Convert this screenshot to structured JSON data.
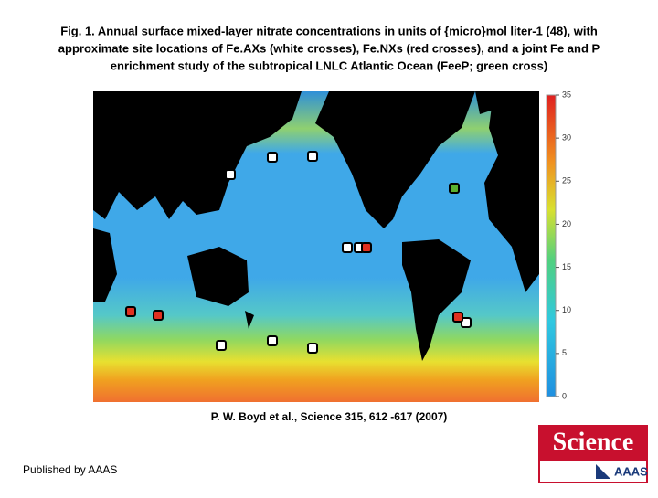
{
  "title": [
    "Fig. 1. Annual surface mixed-layer nitrate concentrations in units of {micro}mol liter-1 (48), with",
    "approximate site locations of Fe.AXs (white crosses), Fe.NXs (red crosses), and a joint Fe and P",
    "enrichment study of the subtropical LNLC Atlantic Ocean (FeeP; green cross)"
  ],
  "colorbar": {
    "lim": [
      0,
      35
    ],
    "ticks": [
      0,
      5,
      10,
      15,
      20,
      25,
      30,
      35
    ]
  },
  "citation": "P. W.  Boyd et al.,  Science  315, 612 -617 (2007)",
  "footer": "Published by AAAS",
  "logo": {
    "name": "Science",
    "publisher": "AAAS"
  }
}
